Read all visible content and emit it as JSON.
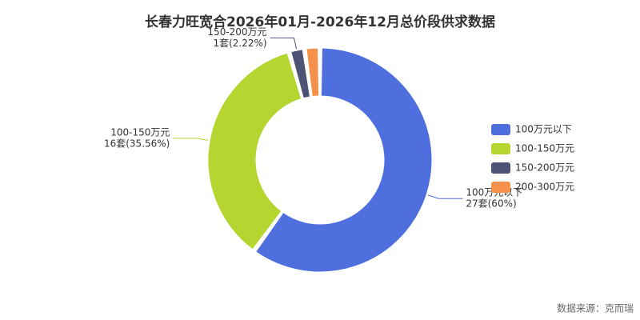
{
  "chart_data": {
    "type": "donut",
    "title": "长春力旺宽合2026年01月-2026年12月总价段供求数据",
    "categories": [
      "100万元以下",
      "100-150万元",
      "150-200万元",
      "200-300万元"
    ],
    "values": [
      27,
      16,
      1,
      1
    ],
    "value_labels": [
      "27套(60%)",
      "16套(35.56%)",
      "1套(2.22%)",
      null
    ],
    "colors": [
      "#4f6fdf",
      "#b5d631",
      "#4e5275",
      "#f6914c"
    ],
    "legend": "right",
    "source": "数据来源：克而瑞"
  }
}
